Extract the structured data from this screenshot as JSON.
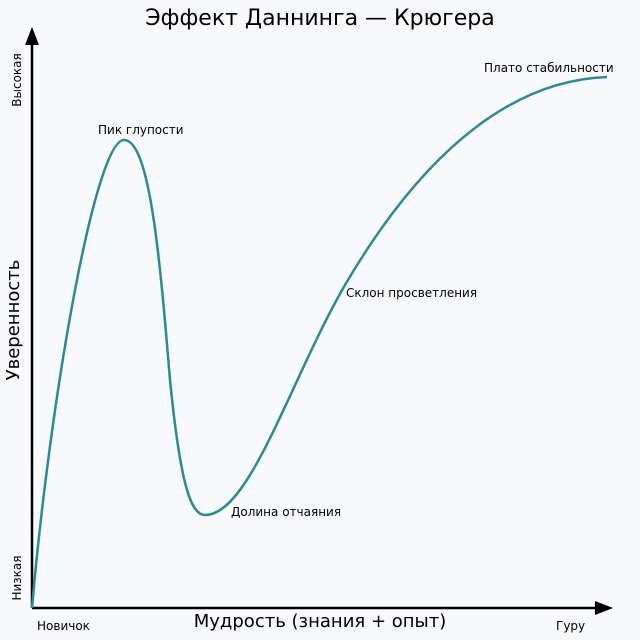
{
  "title": "Эффект Даннинга — Крюгера",
  "y_axis": {
    "label": "Уверенность",
    "low": "Низкая",
    "high": "Высокая"
  },
  "x_axis": {
    "label": "Мудрость (знания + опыт)",
    "low": "Новичок",
    "high": "Гуру"
  },
  "annotations": [
    "Пик глупости",
    "Долина отчаяния",
    "Склон просветления",
    "Плато стабильности"
  ]
}
